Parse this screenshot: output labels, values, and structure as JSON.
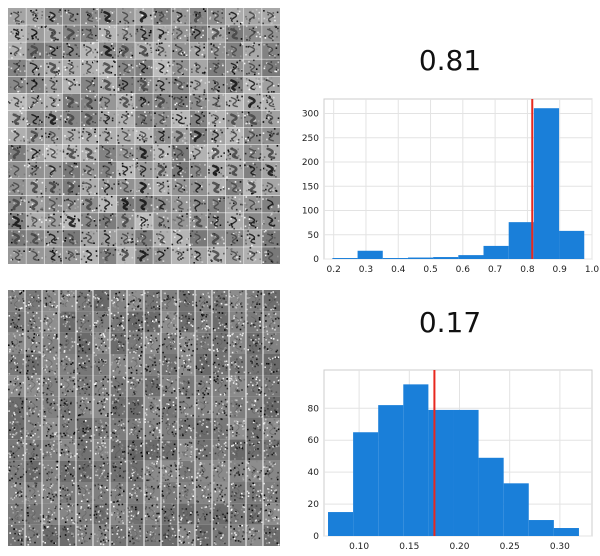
{
  "chart_data": [
    {
      "type": "bar",
      "title": "0.81",
      "mean_marker": 0.815,
      "marker_color": "#e8281e",
      "bar_color": "#1a7fd9",
      "xlim": [
        0.17,
        1.0
      ],
      "ylim": [
        0,
        330
      ],
      "xticks": [
        "0.2",
        "0.3",
        "0.4",
        "0.5",
        "0.6",
        "0.7",
        "0.8",
        "0.9",
        "1.0"
      ],
      "yticks": [
        "0",
        "50",
        "100",
        "150",
        "200",
        "250",
        "300"
      ],
      "bins": [
        {
          "x0": 0.196,
          "x1": 0.274,
          "count": 2
        },
        {
          "x0": 0.274,
          "x1": 0.352,
          "count": 17
        },
        {
          "x0": 0.352,
          "x1": 0.43,
          "count": 2
        },
        {
          "x0": 0.43,
          "x1": 0.508,
          "count": 3
        },
        {
          "x0": 0.508,
          "x1": 0.586,
          "count": 4
        },
        {
          "x0": 0.586,
          "x1": 0.664,
          "count": 8
        },
        {
          "x0": 0.664,
          "x1": 0.742,
          "count": 27
        },
        {
          "x0": 0.742,
          "x1": 0.82,
          "count": 76
        },
        {
          "x0": 0.82,
          "x1": 0.898,
          "count": 311
        },
        {
          "x0": 0.898,
          "x1": 0.976,
          "count": 58
        }
      ]
    },
    {
      "type": "bar",
      "title": "0.17",
      "mean_marker": 0.175,
      "marker_color": "#e8281e",
      "bar_color": "#1a7fd9",
      "xlim": [
        0.065,
        0.332
      ],
      "ylim": [
        0,
        104
      ],
      "xticks": [
        "0.10",
        "0.15",
        "0.20",
        "0.25",
        "0.30"
      ],
      "yticks": [
        "0",
        "20",
        "40",
        "60",
        "80"
      ],
      "bins": [
        {
          "x0": 0.069,
          "x1": 0.094,
          "count": 15
        },
        {
          "x0": 0.094,
          "x1": 0.119,
          "count": 65
        },
        {
          "x0": 0.119,
          "x1": 0.144,
          "count": 82
        },
        {
          "x0": 0.144,
          "x1": 0.169,
          "count": 95
        },
        {
          "x0": 0.169,
          "x1": 0.194,
          "count": 79
        },
        {
          "x0": 0.194,
          "x1": 0.219,
          "count": 79
        },
        {
          "x0": 0.219,
          "x1": 0.244,
          "count": 49
        },
        {
          "x0": 0.244,
          "x1": 0.269,
          "count": 33
        },
        {
          "x0": 0.269,
          "x1": 0.294,
          "count": 10
        },
        {
          "x0": 0.294,
          "x1": 0.319,
          "count": 5
        }
      ]
    }
  ],
  "image_grids": [
    {
      "name": "top",
      "rows": 15,
      "cols": 15,
      "style": "digits"
    },
    {
      "name": "bottom",
      "rows": 12,
      "cols": 16,
      "style": "noise"
    }
  ]
}
